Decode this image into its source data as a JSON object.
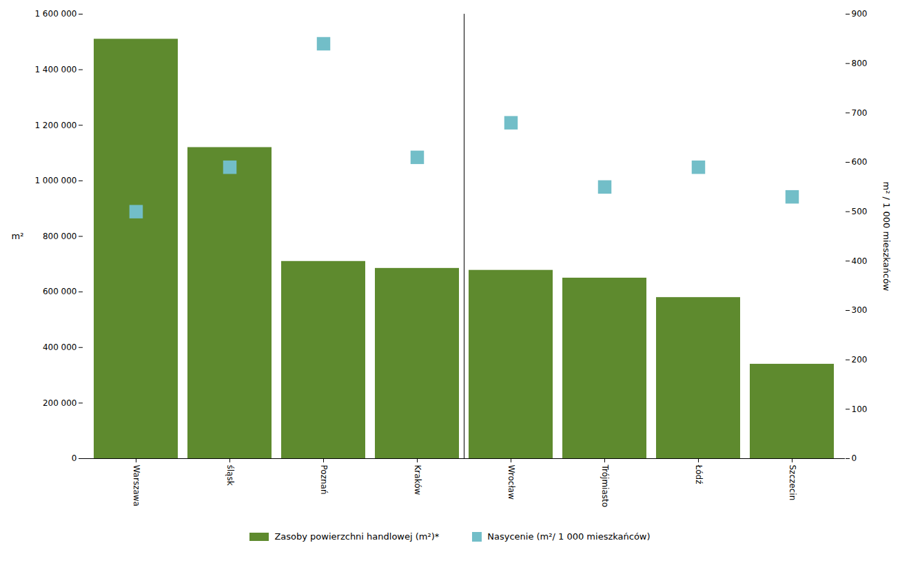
{
  "chart_data": {
    "type": "bar",
    "categories": [
      "Warszawa",
      "śląsk",
      "Poznań",
      "Kraków",
      "Wrocław",
      "Trójmiasto",
      "Łódź",
      "Szczecin"
    ],
    "series": [
      {
        "name": "Zasoby powierzchni handlowej (m²)*",
        "type": "bar",
        "color": "#5e8a2e",
        "values": [
          1510000,
          1120000,
          710000,
          685000,
          678000,
          650000,
          580000,
          340000
        ]
      },
      {
        "name": "Nasycenie (m²/ 1 000 mieszkańców)",
        "type": "scatter",
        "marker": "square",
        "color": "#72bec8",
        "axis": "y2",
        "values": [
          500,
          590,
          840,
          610,
          680,
          550,
          590,
          530
        ]
      }
    ],
    "ylabel": "m²",
    "y2label": "m² / 1 000 mieszkańców",
    "ylim": [
      0,
      1600000
    ],
    "yticks": [
      0,
      {
        "value": 200000,
        "label": "200 000"
      },
      {
        "value": 400000,
        "label": "400 000"
      },
      {
        "value": 600000,
        "label": "600 000"
      },
      {
        "value": 800000,
        "label": "800 000"
      },
      {
        "value": 1000000,
        "label": "1 000 000"
      },
      {
        "value": 1200000,
        "label": "1 200 000"
      },
      {
        "value": 1400000,
        "label": "1 400 000"
      },
      {
        "value": 1600000,
        "label": "1 600 000"
      }
    ],
    "y2lim": [
      0,
      900
    ],
    "y2ticks": [
      0,
      100,
      200,
      300,
      400,
      500,
      600,
      700,
      800,
      900
    ],
    "grid": false,
    "legend": "bottom"
  }
}
